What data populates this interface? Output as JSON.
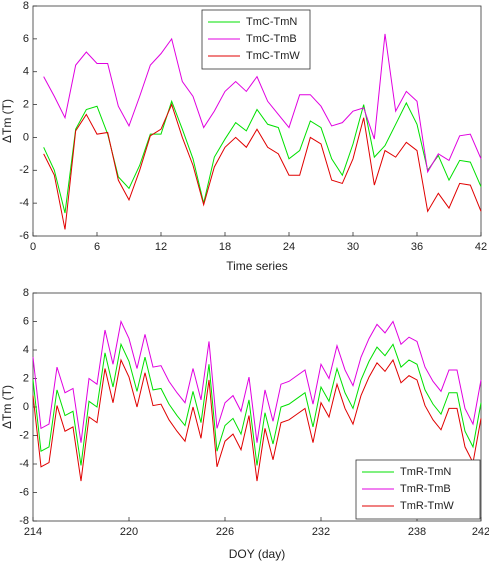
{
  "chart_data": [
    {
      "type": "line",
      "xlabel": "Time series",
      "ylabel": "ΔTm (T)",
      "x": [
        1,
        2,
        3,
        4,
        5,
        6,
        7,
        8,
        9,
        10,
        11,
        12,
        13,
        14,
        15,
        16,
        17,
        18,
        19,
        20,
        21,
        22,
        23,
        24,
        25,
        26,
        27,
        28,
        29,
        30,
        31,
        32,
        33,
        34,
        35,
        36,
        37,
        38,
        39,
        40,
        41,
        42
      ],
      "series": [
        {
          "name": "TmC-TmN",
          "color": "#00e000",
          "values": [
            -0.6,
            -2.0,
            -4.6,
            0.5,
            1.7,
            1.9,
            0.2,
            -2.4,
            -3.1,
            -1.7,
            0.2,
            0.2,
            2.2,
            0.5,
            -1.3,
            -4.0,
            -1.2,
            -0.1,
            0.9,
            0.4,
            1.7,
            0.8,
            0.6,
            -1.3,
            -0.8,
            1.0,
            0.6,
            -1.3,
            -2.3,
            -0.4,
            2.0,
            -1.2,
            -0.5,
            0.8,
            2.1,
            0.8,
            -2.0,
            -1.1,
            -2.6,
            -1.4,
            -1.5,
            -3.0
          ]
        },
        {
          "name": "TmC-TmB",
          "color": "#e000e0",
          "values": [
            3.7,
            2.5,
            1.2,
            4.4,
            5.2,
            4.5,
            4.5,
            1.9,
            0.7,
            2.5,
            4.4,
            5.1,
            6.0,
            3.4,
            2.5,
            0.6,
            1.6,
            2.8,
            3.4,
            2.8,
            3.7,
            2.2,
            1.4,
            0.6,
            2.6,
            2.6,
            1.9,
            0.7,
            0.9,
            1.6,
            1.8,
            -0.1,
            6.3,
            1.6,
            2.8,
            2.2,
            -2.1,
            -1.0,
            -1.4,
            0.1,
            0.2,
            -1.3
          ]
        },
        {
          "name": "TmC-TmW",
          "color": "#e00000",
          "values": [
            -1.0,
            -2.3,
            -5.6,
            0.4,
            1.4,
            0.2,
            0.3,
            -2.6,
            -3.8,
            -2.0,
            0.1,
            0.5,
            2.0,
            0.0,
            -1.7,
            -4.1,
            -1.8,
            -0.6,
            0.0,
            -0.6,
            0.5,
            -0.6,
            -1.0,
            -2.3,
            -2.3,
            0.0,
            -0.4,
            -2.6,
            -2.8,
            -1.3,
            1.2,
            -2.9,
            -0.8,
            -1.2,
            -0.3,
            -0.8,
            -4.5,
            -3.4,
            -4.3,
            -2.8,
            -2.9,
            -4.5
          ]
        }
      ],
      "xlim": [
        0,
        42
      ],
      "xticks": [
        0,
        6,
        12,
        18,
        24,
        30,
        36,
        42
      ],
      "ylim": [
        -6,
        8
      ],
      "yticks": [
        -6,
        -4,
        -2,
        0,
        2,
        4,
        6,
        8
      ],
      "legend": "upper center"
    },
    {
      "type": "line",
      "xlabel": "DOY (day)",
      "ylabel": "ΔTm (T)",
      "x": [
        214,
        214.5,
        215,
        215.5,
        216,
        216.5,
        217,
        217.5,
        218,
        218.5,
        219,
        219.5,
        220,
        220.5,
        221,
        221.5,
        222,
        222.5,
        223,
        223.5,
        224,
        224.5,
        225,
        225.5,
        226,
        226.5,
        227,
        227.5,
        228,
        228.5,
        229,
        229.5,
        230,
        230.5,
        231,
        231.5,
        232,
        232.5,
        233,
        233.5,
        234,
        234.5,
        235,
        235.5,
        236,
        236.5,
        237,
        237.5,
        238,
        238.5,
        239,
        239.5,
        240,
        240.5,
        241,
        241.5,
        242
      ],
      "series": [
        {
          "name": "TmR-TmN",
          "color": "#00e000",
          "values": [
            1.9,
            -3.1,
            -2.8,
            1.2,
            -0.6,
            -0.3,
            -4.1,
            0.4,
            0.0,
            3.8,
            1.4,
            4.4,
            3.2,
            1.1,
            3.5,
            1.2,
            1.3,
            0.2,
            -0.6,
            -1.3,
            1.1,
            -1.1,
            3.0,
            -3.1,
            -1.3,
            -0.8,
            -1.9,
            0.5,
            -4.1,
            -0.4,
            -2.6,
            0.0,
            0.2,
            0.6,
            1.0,
            -1.4,
            1.4,
            0.4,
            2.7,
            1.0,
            -0.1,
            1.9,
            3.2,
            4.2,
            3.6,
            4.4,
            2.8,
            3.3,
            3.0,
            1.2,
            0.2,
            -0.5,
            1.0,
            1.0,
            -1.7,
            -2.8,
            0.3
          ]
        },
        {
          "name": "TmR-TmB",
          "color": "#e000e0",
          "values": [
            3.5,
            -1.5,
            -1.2,
            2.8,
            1.0,
            1.3,
            -2.5,
            2.0,
            1.6,
            5.4,
            3.0,
            6.0,
            4.8,
            2.7,
            5.1,
            2.8,
            2.9,
            1.8,
            1.0,
            0.3,
            2.7,
            0.5,
            4.6,
            -1.5,
            0.3,
            0.8,
            -0.3,
            2.1,
            -2.5,
            1.2,
            -1.0,
            1.6,
            1.8,
            2.2,
            2.6,
            0.2,
            3.0,
            2.0,
            4.3,
            2.6,
            1.5,
            3.5,
            4.8,
            5.8,
            5.2,
            6.0,
            4.4,
            4.9,
            4.6,
            2.8,
            1.8,
            1.1,
            2.6,
            2.6,
            -0.1,
            -1.2,
            1.9
          ]
        },
        {
          "name": "TmR-TmW",
          "color": "#e00000",
          "values": [
            0.8,
            -4.2,
            -3.9,
            0.1,
            -1.7,
            -1.4,
            -5.2,
            -0.7,
            -1.1,
            2.7,
            0.3,
            3.3,
            2.1,
            0.0,
            2.4,
            0.1,
            0.2,
            -0.9,
            -1.7,
            -2.4,
            0.0,
            -2.2,
            1.9,
            -4.2,
            -2.4,
            -1.9,
            -3.0,
            -0.6,
            -5.2,
            -1.5,
            -3.7,
            -1.1,
            -0.9,
            -0.5,
            -0.1,
            -2.5,
            0.3,
            -0.7,
            1.6,
            -0.1,
            -1.2,
            0.8,
            2.1,
            3.1,
            2.5,
            3.3,
            1.7,
            2.2,
            1.9,
            0.1,
            -0.9,
            -1.6,
            -0.1,
            -0.1,
            -2.8,
            -3.9,
            -0.8
          ]
        }
      ],
      "xlim": [
        214,
        242
      ],
      "xticks": [
        214,
        220,
        226,
        232,
        238,
        242
      ],
      "ylim": [
        -8,
        8
      ],
      "yticks": [
        -8,
        -6,
        -4,
        -2,
        0,
        2,
        4,
        6,
        8
      ],
      "legend": "lower right"
    }
  ]
}
